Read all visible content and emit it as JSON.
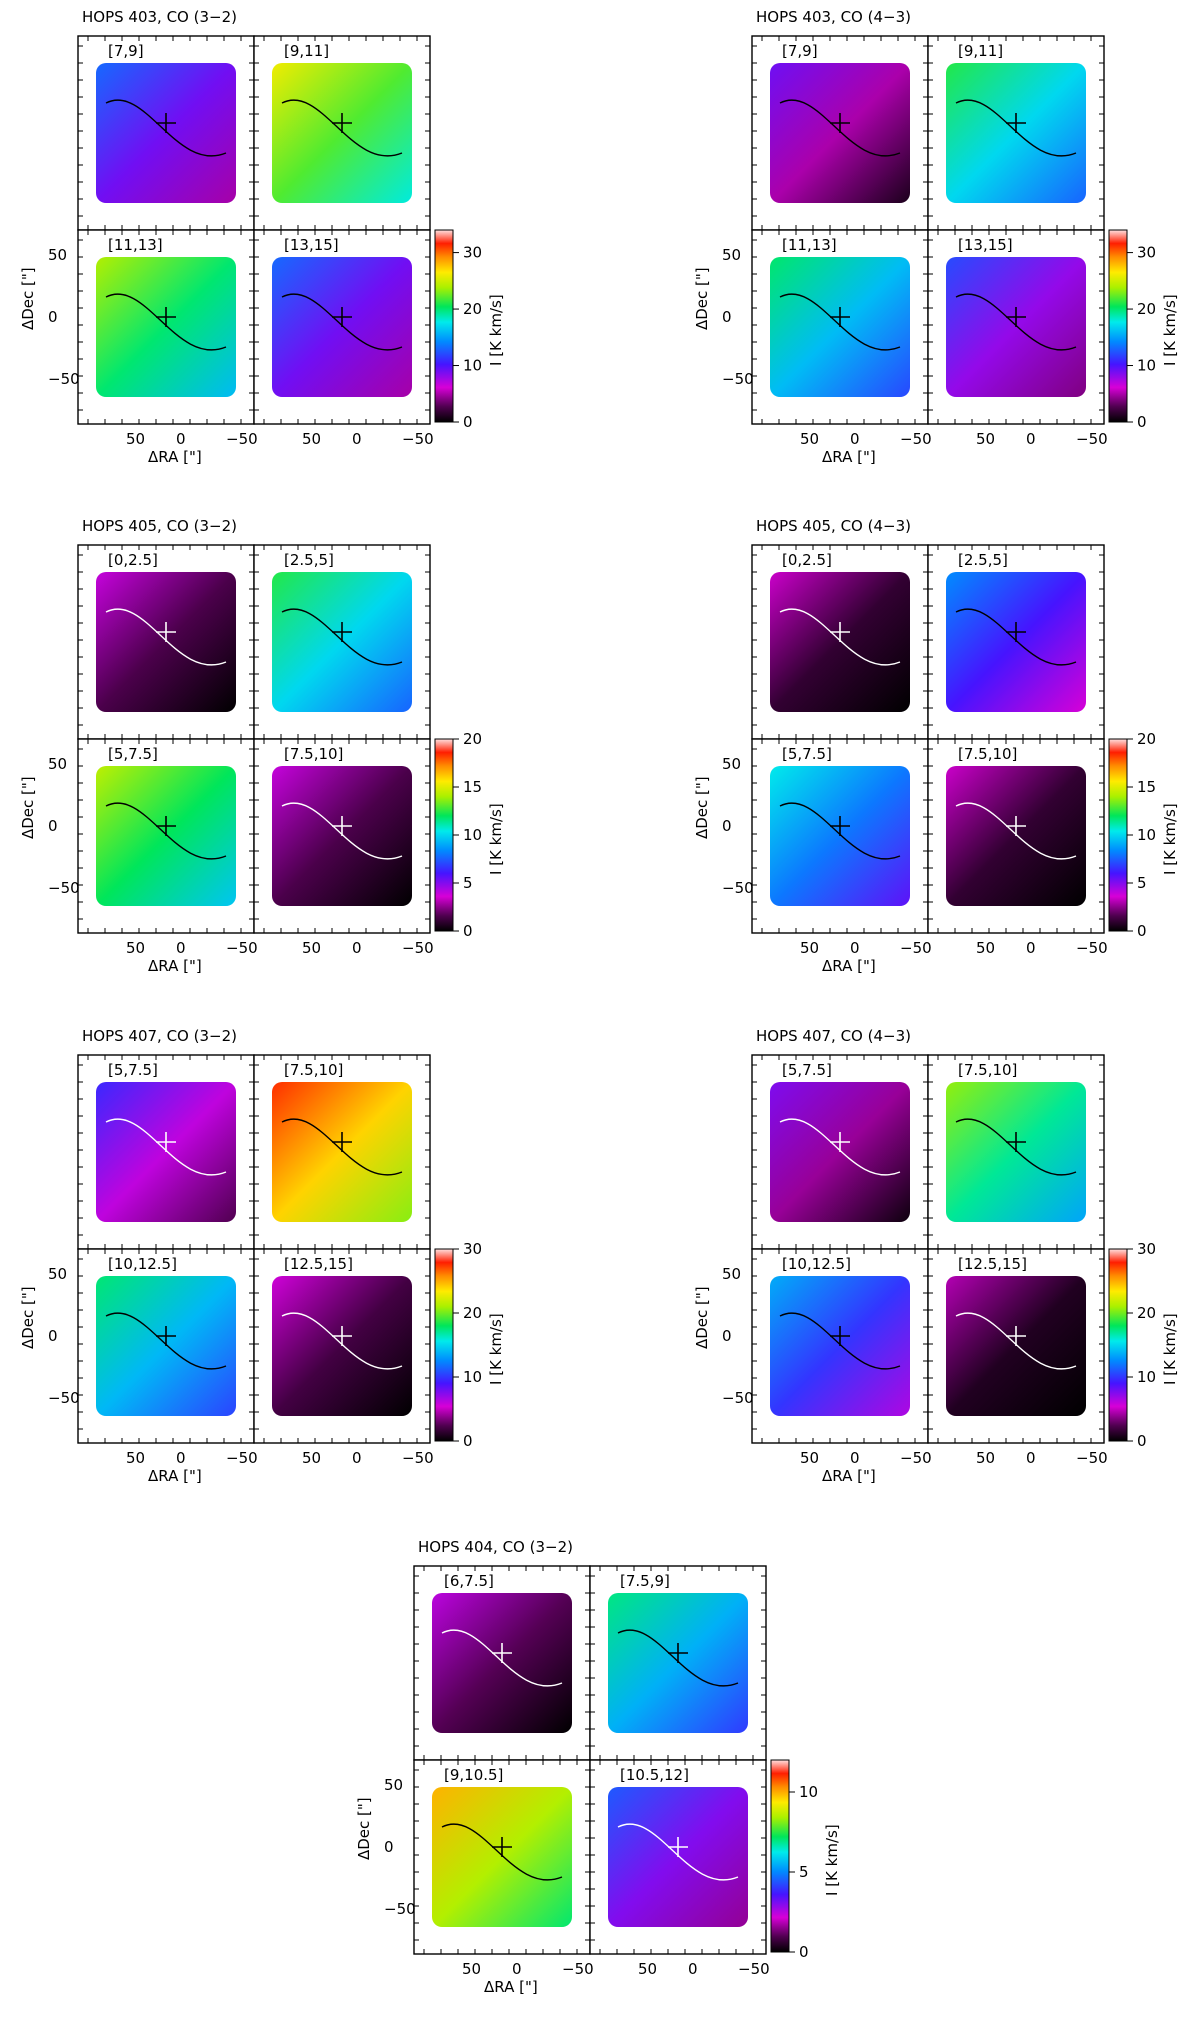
{
  "chart_data": [
    {
      "type": "heatmap",
      "title": "HOPS 403, CO (3−2)",
      "xlabel": "ΔRA [\"]",
      "ylabel": "ΔDec [\"]",
      "xticks": [
        "50",
        "0",
        "−50"
      ],
      "yticks": [
        "50",
        "0",
        "−50"
      ],
      "colorbar_label": "I [K km/s]",
      "colorbar_ticks": [
        "0",
        "10",
        "20",
        "30"
      ],
      "colorbar_range": [
        0,
        34
      ],
      "panels": [
        {
          "label": "[7,9]",
          "mean_intensity": 9,
          "cross_color": "black"
        },
        {
          "label": "[9,11]",
          "mean_intensity": 22,
          "cross_color": "black"
        },
        {
          "label": "[11,13]",
          "mean_intensity": 20,
          "cross_color": "black"
        },
        {
          "label": "[13,15]",
          "mean_intensity": 9,
          "cross_color": "black"
        }
      ]
    },
    {
      "type": "heatmap",
      "title": "HOPS 403, CO (4−3)",
      "xlabel": "ΔRA [\"]",
      "ylabel": "ΔDec [\"]",
      "xticks": [
        "50",
        "0",
        "−50"
      ],
      "yticks": [
        "50",
        "0",
        "−50"
      ],
      "colorbar_label": "I [K km/s]",
      "colorbar_ticks": [
        "0",
        "10",
        "20",
        "30"
      ],
      "colorbar_range": [
        0,
        34
      ],
      "panels": [
        {
          "label": "[7,9]",
          "mean_intensity": 5,
          "cross_color": "black"
        },
        {
          "label": "[9,11]",
          "mean_intensity": 17,
          "cross_color": "black"
        },
        {
          "label": "[11,13]",
          "mean_intensity": 16,
          "cross_color": "black"
        },
        {
          "label": "[13,15]",
          "mean_intensity": 8,
          "cross_color": "black"
        }
      ]
    },
    {
      "type": "heatmap",
      "title": "HOPS 405, CO (3−2)",
      "xlabel": "ΔRA [\"]",
      "ylabel": "ΔDec [\"]",
      "xticks": [
        "50",
        "0",
        "−50"
      ],
      "yticks": [
        "50",
        "0",
        "−50"
      ],
      "colorbar_label": "I [K km/s]",
      "colorbar_ticks": [
        "0",
        "5",
        "10",
        "15",
        "20"
      ],
      "colorbar_range": [
        0,
        20
      ],
      "panels": [
        {
          "label": "[0,2.5]",
          "mean_intensity": 1.5,
          "cross_color": "white"
        },
        {
          "label": "[2.5,5]",
          "mean_intensity": 10,
          "cross_color": "black"
        },
        {
          "label": "[5,7.5]",
          "mean_intensity": 12,
          "cross_color": "black"
        },
        {
          "label": "[7.5,10]",
          "mean_intensity": 1.5,
          "cross_color": "white"
        }
      ]
    },
    {
      "type": "heatmap",
      "title": "HOPS 405, CO (4−3)",
      "xlabel": "ΔRA [\"]",
      "ylabel": "ΔDec [\"]",
      "xticks": [
        "50",
        "0",
        "−50"
      ],
      "yticks": [
        "50",
        "0",
        "−50"
      ],
      "colorbar_label": "I [K km/s]",
      "colorbar_ticks": [
        "0",
        "5",
        "10",
        "15",
        "20"
      ],
      "colorbar_range": [
        0,
        20
      ],
      "panels": [
        {
          "label": "[0,2.5]",
          "mean_intensity": 1,
          "cross_color": "white"
        },
        {
          "label": "[2.5,5]",
          "mean_intensity": 6,
          "cross_color": "black"
        },
        {
          "label": "[5,7.5]",
          "mean_intensity": 8,
          "cross_color": "black"
        },
        {
          "label": "[7.5,10]",
          "mean_intensity": 1,
          "cross_color": "white"
        }
      ]
    },
    {
      "type": "heatmap",
      "title": "HOPS 407, CO (3−2)",
      "xlabel": "ΔRA [\"]",
      "ylabel": "ΔDec [\"]",
      "xticks": [
        "50",
        "0",
        "−50"
      ],
      "yticks": [
        "50",
        "0",
        "−50"
      ],
      "colorbar_label": "I [K km/s]",
      "colorbar_ticks": [
        "0",
        "10",
        "20",
        "30"
      ],
      "colorbar_range": [
        0,
        30
      ],
      "panels": [
        {
          "label": "[5,7.5]",
          "mean_intensity": 6,
          "cross_color": "white"
        },
        {
          "label": "[7.5,10]",
          "mean_intensity": 24,
          "cross_color": "black"
        },
        {
          "label": "[10,12.5]",
          "mean_intensity": 14,
          "cross_color": "black"
        },
        {
          "label": "[12.5,15]",
          "mean_intensity": 2,
          "cross_color": "white"
        }
      ]
    },
    {
      "type": "heatmap",
      "title": "HOPS 407, CO (4−3)",
      "xlabel": "ΔRA [\"]",
      "ylabel": "ΔDec [\"]",
      "xticks": [
        "50",
        "0",
        "−50"
      ],
      "yticks": [
        "50",
        "0",
        "−50"
      ],
      "colorbar_label": "I [K km/s]",
      "colorbar_ticks": [
        "0",
        "10",
        "20",
        "30"
      ],
      "colorbar_range": [
        0,
        30
      ],
      "panels": [
        {
          "label": "[5,7.5]",
          "mean_intensity": 4,
          "cross_color": "white"
        },
        {
          "label": "[7.5,10]",
          "mean_intensity": 17,
          "cross_color": "black"
        },
        {
          "label": "[10,12.5]",
          "mean_intensity": 10,
          "cross_color": "black"
        },
        {
          "label": "[12.5,15]",
          "mean_intensity": 1,
          "cross_color": "white"
        }
      ]
    },
    {
      "type": "heatmap",
      "title": "HOPS 404, CO (3−2)",
      "xlabel": "ΔRA [\"]",
      "ylabel": "ΔDec [\"]",
      "xticks": [
        "50",
        "0",
        "−50"
      ],
      "yticks": [
        "50",
        "0",
        "−50"
      ],
      "colorbar_label": "I [K km/s]",
      "colorbar_ticks": [
        "0",
        "5",
        "10"
      ],
      "colorbar_range": [
        0,
        12
      ],
      "panels": [
        {
          "label": "[6,7.5]",
          "mean_intensity": 1,
          "cross_color": "white"
        },
        {
          "label": "[7.5,9]",
          "mean_intensity": 5.5,
          "cross_color": "black"
        },
        {
          "label": "[9,10.5]",
          "mean_intensity": 8.5,
          "cross_color": "black"
        },
        {
          "label": "[10.5,12]",
          "mean_intensity": 3,
          "cross_color": "white"
        }
      ]
    }
  ]
}
